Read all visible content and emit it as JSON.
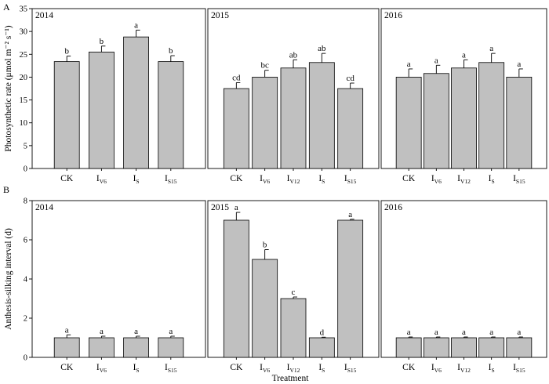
{
  "figure": {
    "panel_a": "A",
    "panel_b": "B",
    "xlabel": "Treatment"
  },
  "chart_data": [
    {
      "type": "bar",
      "panel": "A",
      "title": "2014",
      "ylabel": "Photosynthetic rate (μmol m⁻² s⁻¹)",
      "ylim": [
        0,
        35
      ],
      "yticks": [
        0,
        5,
        10,
        15,
        20,
        25,
        30,
        35
      ],
      "categories": [
        {
          "main": "CK",
          "sub": ""
        },
        {
          "main": "I",
          "sub": "V6"
        },
        {
          "main": "I",
          "sub": "S"
        },
        {
          "main": "I",
          "sub": "S15"
        }
      ],
      "values": [
        23.4,
        25.5,
        28.8,
        23.4
      ],
      "errors": [
        1.2,
        1.3,
        1.5,
        1.3
      ],
      "letters": [
        "b",
        "b",
        "a",
        "b"
      ]
    },
    {
      "type": "bar",
      "panel": "A",
      "title": "2015",
      "ylabel": "",
      "ylim": [
        0,
        35
      ],
      "yticks": [],
      "categories": [
        {
          "main": "CK",
          "sub": ""
        },
        {
          "main": "I",
          "sub": "V6"
        },
        {
          "main": "I",
          "sub": "V12"
        },
        {
          "main": "I",
          "sub": "S"
        },
        {
          "main": "I",
          "sub": "S15"
        }
      ],
      "values": [
        17.5,
        20.0,
        22.0,
        23.2,
        17.5
      ],
      "errors": [
        1.3,
        1.5,
        1.8,
        2.0,
        1.2
      ],
      "letters": [
        "cd",
        "bc",
        "ab",
        "ab",
        "cd"
      ]
    },
    {
      "type": "bar",
      "panel": "A",
      "title": "2016",
      "ylabel": "",
      "ylim": [
        0,
        35
      ],
      "yticks": [],
      "categories": [
        {
          "main": "CK",
          "sub": ""
        },
        {
          "main": "I",
          "sub": "V6"
        },
        {
          "main": "I",
          "sub": "V12"
        },
        {
          "main": "I",
          "sub": "S"
        },
        {
          "main": "I",
          "sub": "S15"
        }
      ],
      "values": [
        20.0,
        20.8,
        22.0,
        23.2,
        20.0
      ],
      "errors": [
        1.8,
        1.8,
        1.8,
        2.0,
        1.8
      ],
      "letters": [
        "a",
        "a",
        "a",
        "a",
        "a"
      ]
    },
    {
      "type": "bar",
      "panel": "B",
      "title": "2014",
      "ylabel": "Anthesis-silking interval (d)",
      "ylim": [
        0,
        8
      ],
      "yticks": [
        0,
        2,
        4,
        6,
        8
      ],
      "categories": [
        {
          "main": "CK",
          "sub": ""
        },
        {
          "main": "I",
          "sub": "V6"
        },
        {
          "main": "I",
          "sub": "S"
        },
        {
          "main": "I",
          "sub": "S15"
        }
      ],
      "values": [
        1.0,
        1.0,
        1.0,
        1.0
      ],
      "errors": [
        0.15,
        0.08,
        0.08,
        0.08
      ],
      "letters": [
        "a",
        "a",
        "a",
        "a"
      ]
    },
    {
      "type": "bar",
      "panel": "B",
      "title": "2015",
      "ylabel": "",
      "ylim": [
        0,
        8
      ],
      "yticks": [],
      "categories": [
        {
          "main": "CK",
          "sub": ""
        },
        {
          "main": "I",
          "sub": "V6"
        },
        {
          "main": "I",
          "sub": "V12"
        },
        {
          "main": "I",
          "sub": "S"
        },
        {
          "main": "I",
          "sub": "S15"
        }
      ],
      "values": [
        7.0,
        5.0,
        3.0,
        1.0,
        7.0
      ],
      "errors": [
        0.4,
        0.5,
        0.08,
        0.03,
        0.05
      ],
      "letters": [
        "a",
        "b",
        "c",
        "d",
        "a"
      ]
    },
    {
      "type": "bar",
      "panel": "B",
      "title": "2016",
      "ylabel": "",
      "ylim": [
        0,
        8
      ],
      "yticks": [],
      "categories": [
        {
          "main": "CK",
          "sub": ""
        },
        {
          "main": "I",
          "sub": "V6"
        },
        {
          "main": "I",
          "sub": "V12"
        },
        {
          "main": "I",
          "sub": "S"
        },
        {
          "main": "I",
          "sub": "S15"
        }
      ],
      "values": [
        1.0,
        1.0,
        1.0,
        1.0,
        1.0
      ],
      "errors": [
        0.04,
        0.04,
        0.04,
        0.04,
        0.04
      ],
      "letters": [
        "a",
        "a",
        "a",
        "a",
        "a"
      ]
    }
  ]
}
